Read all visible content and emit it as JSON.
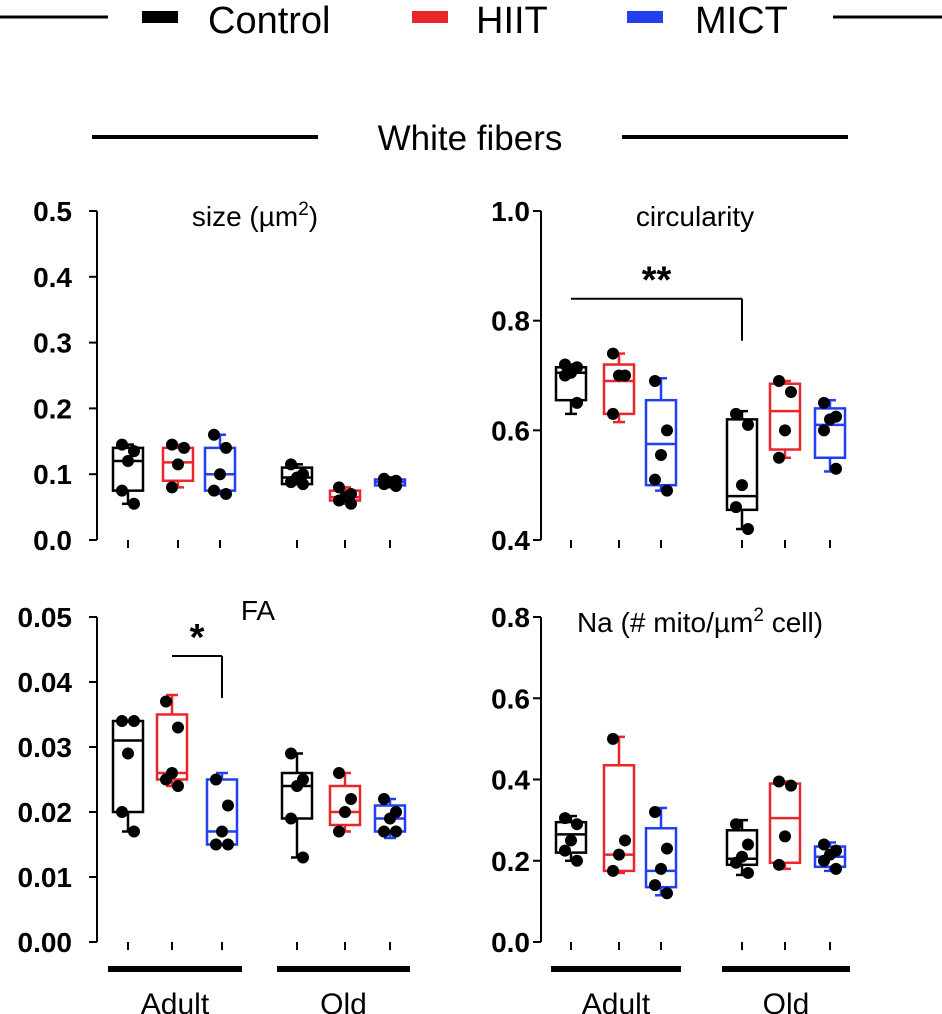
{
  "legend": {
    "items": [
      {
        "label": "Control",
        "color": "#000000"
      },
      {
        "label": "HIIT",
        "color": "#e8262b"
      },
      {
        "label": "MICT",
        "color": "#2340f0"
      }
    ]
  },
  "section_title": "White fibers",
  "group_labels": [
    "Adult",
    "Old"
  ],
  "chart_data": [
    {
      "type": "box",
      "title": "size (µm",
      "title_sup": "2",
      "title_after": ")",
      "ylim": [
        0,
        0.5
      ],
      "yticks": [
        "0.0",
        "0.1",
        "0.2",
        "0.3",
        "0.4",
        "0.5"
      ],
      "groups": [
        "Adult",
        "Old"
      ],
      "boxes": [
        {
          "group": "Adult",
          "series": "Control",
          "min": 0.055,
          "q1": 0.075,
          "median": 0.12,
          "q3": 0.14,
          "max": 0.145,
          "points": [
            0.145,
            0.135,
            0.12,
            0.075,
            0.055
          ]
        },
        {
          "group": "Adult",
          "series": "HIIT",
          "min": 0.08,
          "q1": 0.09,
          "median": 0.118,
          "q3": 0.14,
          "max": 0.145,
          "points": [
            0.145,
            0.14,
            0.115,
            0.08
          ]
        },
        {
          "group": "Adult",
          "series": "MICT",
          "min": 0.07,
          "q1": 0.075,
          "median": 0.1,
          "q3": 0.14,
          "max": 0.16,
          "points": [
            0.16,
            0.14,
            0.1,
            0.075,
            0.07
          ]
        },
        {
          "group": "Old",
          "series": "Control",
          "min": 0.085,
          "q1": 0.085,
          "median": 0.095,
          "q3": 0.11,
          "max": 0.115,
          "points": [
            0.115,
            0.1,
            0.095,
            0.088,
            0.085
          ]
        },
        {
          "group": "Old",
          "series": "HIIT",
          "min": 0.055,
          "q1": 0.06,
          "median": 0.065,
          "q3": 0.075,
          "max": 0.08,
          "points": [
            0.08,
            0.07,
            0.065,
            0.06,
            0.055
          ]
        },
        {
          "group": "Old",
          "series": "MICT",
          "min": 0.08,
          "q1": 0.083,
          "median": 0.088,
          "q3": 0.092,
          "max": 0.095,
          "points": [
            0.093,
            0.09,
            0.088,
            0.085,
            0.082
          ]
        }
      ],
      "annotations": []
    },
    {
      "type": "box",
      "title": "circularity",
      "title_sup": "",
      "title_after": "",
      "ylim": [
        0.4,
        1.0
      ],
      "yticks": [
        "0.4",
        "0.6",
        "0.8",
        "1.0"
      ],
      "groups": [
        "Adult",
        "Old"
      ],
      "boxes": [
        {
          "group": "Adult",
          "series": "Control",
          "min": 0.63,
          "q1": 0.655,
          "median": 0.705,
          "q3": 0.715,
          "max": 0.72,
          "points": [
            0.72,
            0.715,
            0.705,
            0.7,
            0.65
          ]
        },
        {
          "group": "Adult",
          "series": "HIIT",
          "min": 0.615,
          "q1": 0.63,
          "median": 0.69,
          "q3": 0.72,
          "max": 0.74,
          "points": [
            0.74,
            0.7,
            0.7,
            0.63
          ]
        },
        {
          "group": "Adult",
          "series": "MICT",
          "min": 0.49,
          "q1": 0.5,
          "median": 0.575,
          "q3": 0.655,
          "max": 0.695,
          "points": [
            0.69,
            0.6,
            0.555,
            0.51,
            0.49
          ]
        },
        {
          "group": "Old",
          "series": "Control",
          "min": 0.42,
          "q1": 0.455,
          "median": 0.48,
          "q3": 0.62,
          "max": 0.635,
          "points": [
            0.63,
            0.61,
            0.5,
            0.46,
            0.42
          ]
        },
        {
          "group": "Old",
          "series": "HIIT",
          "min": 0.55,
          "q1": 0.565,
          "median": 0.635,
          "q3": 0.685,
          "max": 0.69,
          "points": [
            0.69,
            0.67,
            0.6,
            0.55
          ]
        },
        {
          "group": "Old",
          "series": "MICT",
          "min": 0.525,
          "q1": 0.55,
          "median": 0.61,
          "q3": 0.64,
          "max": 0.655,
          "points": [
            0.65,
            0.625,
            0.62,
            0.6,
            0.53
          ]
        }
      ],
      "annotations": [
        {
          "label": "**",
          "from": "Adult-Control",
          "to": "Old-Control",
          "y": 0.84
        }
      ]
    },
    {
      "type": "box",
      "title": "FA",
      "title_sup": "",
      "title_after": "",
      "ylim": [
        0,
        0.05
      ],
      "yticks": [
        "0.00",
        "0.01",
        "0.02",
        "0.03",
        "0.04",
        "0.05"
      ],
      "groups": [
        "Adult",
        "Old"
      ],
      "boxes": [
        {
          "group": "Adult",
          "series": "Control",
          "min": 0.017,
          "q1": 0.02,
          "median": 0.031,
          "q3": 0.034,
          "max": 0.034,
          "points": [
            0.034,
            0.034,
            0.029,
            0.02,
            0.017
          ]
        },
        {
          "group": "Adult",
          "series": "HIIT",
          "min": 0.024,
          "q1": 0.025,
          "median": 0.026,
          "q3": 0.035,
          "max": 0.038,
          "points": [
            0.037,
            0.033,
            0.026,
            0.025,
            0.024
          ]
        },
        {
          "group": "Adult",
          "series": "MICT",
          "min": 0.015,
          "q1": 0.015,
          "median": 0.017,
          "q3": 0.025,
          "max": 0.026,
          "points": [
            0.025,
            0.021,
            0.017,
            0.015,
            0.015
          ]
        },
        {
          "group": "Old",
          "series": "Control",
          "min": 0.013,
          "q1": 0.019,
          "median": 0.024,
          "q3": 0.026,
          "max": 0.029,
          "points": [
            0.029,
            0.025,
            0.024,
            0.019,
            0.013
          ]
        },
        {
          "group": "Old",
          "series": "HIIT",
          "min": 0.017,
          "q1": 0.018,
          "median": 0.02,
          "q3": 0.024,
          "max": 0.026,
          "points": [
            0.026,
            0.022,
            0.02,
            0.017
          ]
        },
        {
          "group": "Old",
          "series": "MICT",
          "min": 0.016,
          "q1": 0.017,
          "median": 0.019,
          "q3": 0.021,
          "max": 0.022,
          "points": [
            0.022,
            0.02,
            0.019,
            0.017,
            0.017
          ]
        }
      ],
      "annotations": [
        {
          "label": "*",
          "from": "Adult-HIIT",
          "to": "Adult-MICT",
          "y": 0.044
        }
      ]
    },
    {
      "type": "box",
      "title": "Na (# mito/µm",
      "title_sup": "2",
      "title_after": " cell)",
      "ylim": [
        0,
        0.8
      ],
      "yticks": [
        "0.0",
        "0.2",
        "0.4",
        "0.6",
        "0.8"
      ],
      "groups": [
        "Adult",
        "Old"
      ],
      "boxes": [
        {
          "group": "Adult",
          "series": "Control",
          "min": 0.2,
          "q1": 0.22,
          "median": 0.265,
          "q3": 0.295,
          "max": 0.31,
          "points": [
            0.305,
            0.29,
            0.25,
            0.225,
            0.2
          ]
        },
        {
          "group": "Adult",
          "series": "HIIT",
          "min": 0.17,
          "q1": 0.175,
          "median": 0.215,
          "q3": 0.435,
          "max": 0.505,
          "points": [
            0.5,
            0.25,
            0.215,
            0.175
          ]
        },
        {
          "group": "Adult",
          "series": "MICT",
          "min": 0.115,
          "q1": 0.135,
          "median": 0.175,
          "q3": 0.28,
          "max": 0.33,
          "points": [
            0.32,
            0.23,
            0.18,
            0.14,
            0.12
          ]
        },
        {
          "group": "Old",
          "series": "Control",
          "min": 0.165,
          "q1": 0.19,
          "median": 0.205,
          "q3": 0.275,
          "max": 0.3,
          "points": [
            0.29,
            0.24,
            0.21,
            0.195,
            0.17
          ]
        },
        {
          "group": "Old",
          "series": "HIIT",
          "min": 0.18,
          "q1": 0.195,
          "median": 0.305,
          "q3": 0.39,
          "max": 0.395,
          "points": [
            0.395,
            0.385,
            0.26,
            0.19
          ]
        },
        {
          "group": "Old",
          "series": "MICT",
          "min": 0.175,
          "q1": 0.185,
          "median": 0.21,
          "q3": 0.235,
          "max": 0.245,
          "points": [
            0.24,
            0.225,
            0.215,
            0.2,
            0.18
          ]
        }
      ],
      "annotations": []
    }
  ]
}
